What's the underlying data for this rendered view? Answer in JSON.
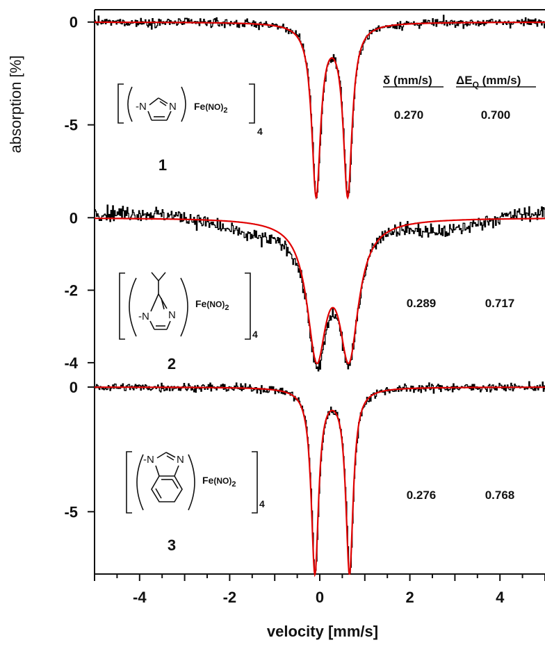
{
  "chart_data": {
    "type": "line",
    "x_axis": {
      "label": "velocity [mm/s]",
      "range": [
        -5,
        5
      ],
      "ticks": [
        -4,
        -2,
        0,
        2,
        4
      ],
      "tick_labels": [
        "-4",
        "-2",
        "0",
        "2",
        "4"
      ]
    },
    "y_axis": {
      "label": "absorption [%]"
    },
    "column_headers": {
      "delta": "δ (mm/s)",
      "deltaEQ_main": "ΔE",
      "deltaEQ_sub": "Q",
      "deltaEQ_unit": " (mm/s)"
    },
    "series_colors": {
      "experimental": "#000000",
      "fit": "#e00000"
    },
    "panels": [
      {
        "compound_label": "1",
        "ylim": [
          -8.9,
          0.6
        ],
        "ticks": [
          0,
          -5
        ],
        "tick_labels": [
          "0",
          "-5"
        ],
        "isomer_shift": 0.27,
        "quadrupole_splitting": 0.7,
        "isomer_shift_text": "0.270",
        "quadrupole_splitting_text": "0.700",
        "fit": {
          "type": "lorentzian-doublet",
          "peak_depth": -8.3,
          "hwhm": 0.12
        },
        "noise": 0.15,
        "ligand": "imidazolate",
        "formula_main": "Fe",
        "formula_group": "(NO)",
        "formula_sub": "2",
        "bracket_sub": "4"
      },
      {
        "compound_label": "2",
        "ylim": [
          -4.5,
          0.35
        ],
        "ticks": [
          0,
          -2,
          -4
        ],
        "tick_labels": [
          "0",
          "-2",
          "-4"
        ],
        "isomer_shift": 0.289,
        "quadrupole_splitting": 0.717,
        "isomer_shift_text": "0.289",
        "quadrupole_splitting_text": "0.717",
        "fit": {
          "type": "lorentzian-doublet",
          "peak_depth": -3.6,
          "hwhm": 0.26
        },
        "noise": 0.14,
        "ligand": "2-isopropylimidazolate",
        "formula_main": "Fe",
        "formula_group": "(NO)",
        "formula_sub": "2",
        "bracket_sub": "4"
      },
      {
        "compound_label": "3",
        "ylim": [
          -7.5,
          0.25
        ],
        "ticks": [
          0,
          -5
        ],
        "tick_labels": [
          "0",
          "-5"
        ],
        "isomer_shift": 0.276,
        "quadrupole_splitting": 0.768,
        "isomer_shift_text": "0.276",
        "quadrupole_splitting_text": "0.768",
        "fit": {
          "type": "lorentzian-doublet",
          "peak_depth": -7.4,
          "hwhm": 0.1
        },
        "noise": 0.12,
        "ligand": "benzimidazolate",
        "formula_main": "Fe",
        "formula_group": "(NO)",
        "formula_sub": "2",
        "bracket_sub": "4"
      }
    ]
  },
  "structures": {
    "n_minus": "-N",
    "n": "N"
  }
}
